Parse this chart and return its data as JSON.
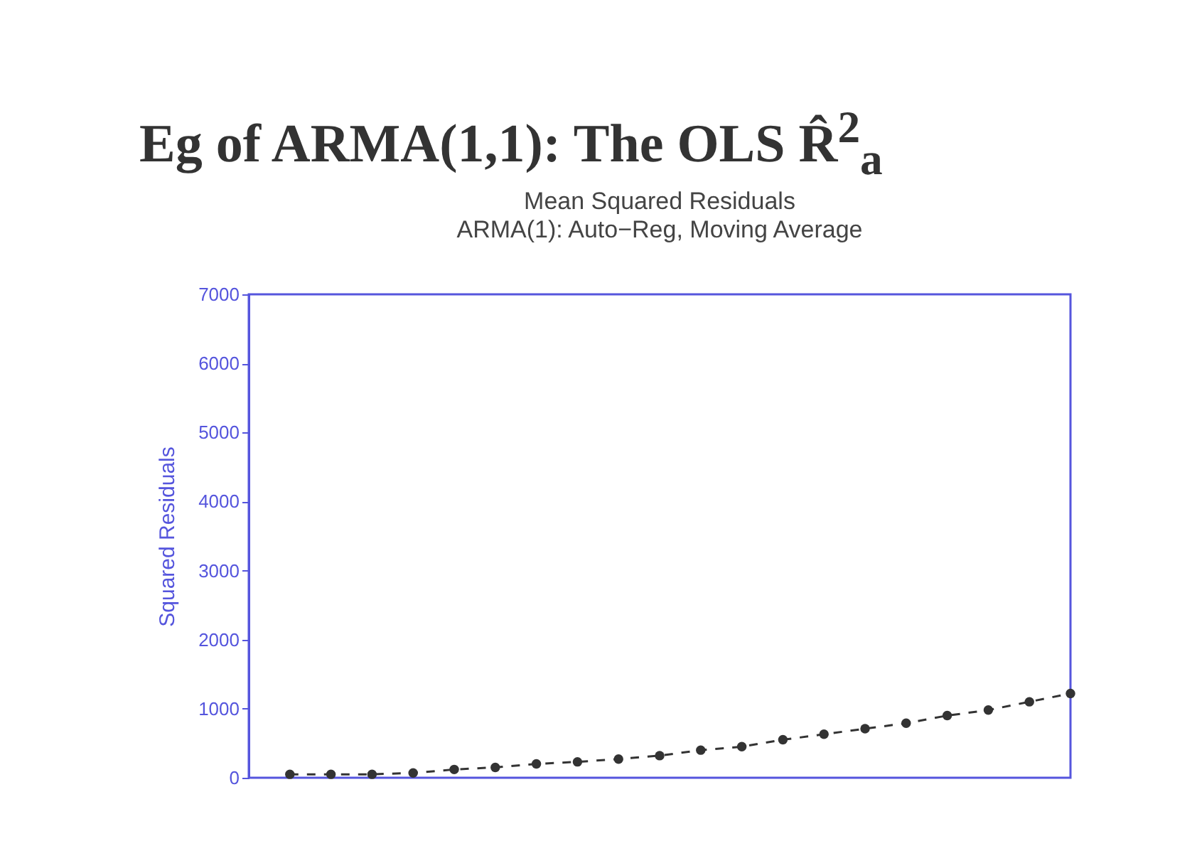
{
  "chart_data": {
    "type": "line",
    "title": "Mean Squared Residuals",
    "subtitle": "ARMA(1): Auto−Reg, Moving Average",
    "ylabel": "Squared Residuals",
    "annotations": [
      "Eg of ARMA(1,1): The OLS R̂$^{2}$$_{a}$"
    ],
    "categories": [
      null,
      null,
      null,
      null,
      null,
      null,
      null,
      null,
      null,
      null,
      null,
      null,
      null,
      null,
      null,
      null,
      null,
      null,
      null,
      null
    ],
    "series": [
      {
        "color": "#333333",
        "values": [
          50,
          50,
          50,
          70,
          120,
          150,
          200,
          230,
          270,
          320,
          400,
          450,
          550,
          630,
          710,
          790,
          900,
          980,
          1100,
          1220
        ]
      }
    ],
    "ylim": [
      0,
      7000
    ],
    "yticks": [
      0,
      1000,
      2000,
      3000,
      4000,
      5000,
      6000,
      7000
    ],
    "grid": false,
    "marker": "circle",
    "line_style": "dashed"
  }
}
